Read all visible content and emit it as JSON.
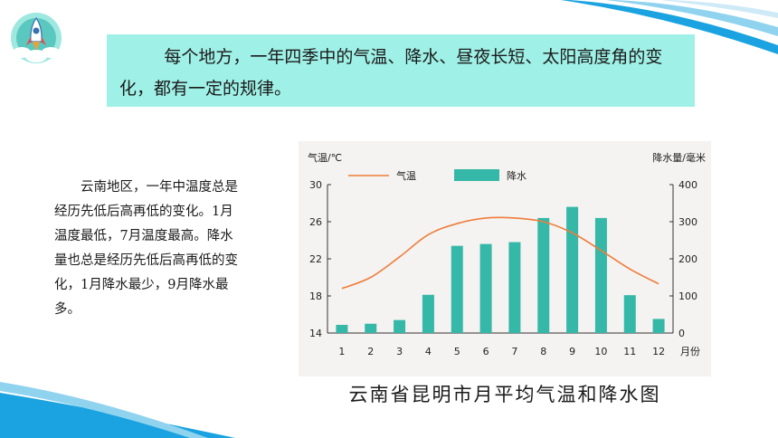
{
  "intro": "每个地方，一年四季中的气温、降水、昼夜长短、太阳高度角的变化，都有一定的规律。",
  "description": "云南地区，一年中温度总是经历先低后高再低的变化。1月温度最低，7月温度最高。降水量也总是经历先低后高再低的变化，1月降水最少，9月降水最多。",
  "caption": "云南省昆明市月平均气温和降水图",
  "colors": {
    "bar": "#35b8a8",
    "line": "#f07c3a",
    "box": "#9ff0e6",
    "wave": "#1aa3e0"
  },
  "chart_data": {
    "type": "bar",
    "categories": [
      "1",
      "2",
      "3",
      "4",
      "5",
      "6",
      "7",
      "8",
      "9",
      "10",
      "11",
      "12"
    ],
    "xlabel": "月份",
    "ylabel_left": "气温/℃",
    "ylabel_right": "降水量/毫米",
    "ylim_left": [
      14,
      30
    ],
    "yticks_left": [
      14,
      18,
      22,
      26,
      30
    ],
    "ylim_right": [
      0,
      400
    ],
    "yticks_right": [
      0,
      100,
      200,
      300,
      400
    ],
    "series": [
      {
        "name": "降水",
        "type": "bar",
        "axis": "right",
        "values": [
          22,
          25,
          35,
          103,
          235,
          240,
          245,
          310,
          340,
          310,
          102,
          38
        ]
      },
      {
        "name": "气温",
        "type": "line",
        "axis": "left",
        "values": [
          18.8,
          20.0,
          22.2,
          24.6,
          25.8,
          26.4,
          26.4,
          26.0,
          24.8,
          22.9,
          20.9,
          19.3
        ]
      }
    ]
  }
}
